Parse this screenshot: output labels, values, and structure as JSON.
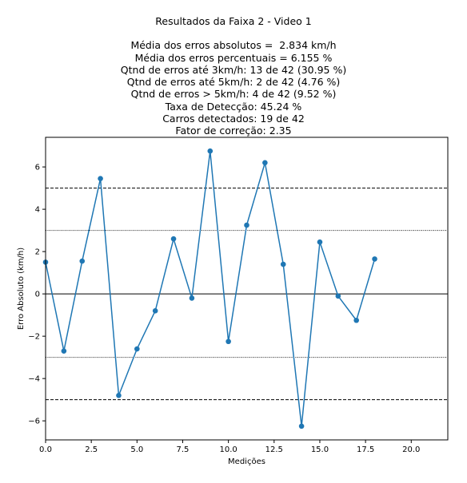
{
  "chart_data": {
    "type": "line",
    "title": "Resultados da Faixa 2 - Video 1",
    "subtitle_lines": [
      "Média dos erros absolutos =  2.834 km/h",
      "Média dos erros percentuais = 6.155 %",
      "Qtnd de erros até 3km/h: 13 de 42 (30.95 %)",
      "Qtnd de erros até 5km/h: 2 de 42 (4.76 %)",
      "Qtnd de erros > 5km/h: 4 de 42 (9.52 %)",
      "Taxa de Detecção: 45.24 %",
      "Carros detectados: 19 de 42",
      "Fator de correção: 2.35"
    ],
    "xlabel": "Medições",
    "ylabel": "Erro Absoluto (km/h)",
    "xlim": [
      0,
      22
    ],
    "ylim": [
      -6.9,
      7.4
    ],
    "xticks": [
      0,
      2.5,
      5,
      7.5,
      10,
      12.5,
      15,
      17.5,
      20
    ],
    "xtick_labels": [
      "0.0",
      "2.5",
      "5.0",
      "7.5",
      "10.0",
      "12.5",
      "15.0",
      "17.5",
      "20.0"
    ],
    "yticks": [
      -6,
      -4,
      -2,
      0,
      2,
      4,
      6
    ],
    "ytick_labels": [
      "−6",
      "−4",
      "−2",
      "0",
      "2",
      "4",
      "6"
    ],
    "grid": false,
    "reference_lines": [
      {
        "y": 5,
        "style": "dashed"
      },
      {
        "y": -5,
        "style": "dashed"
      },
      {
        "y": 3,
        "style": "dotted"
      },
      {
        "y": -3,
        "style": "dotted"
      },
      {
        "y": 0,
        "style": "solid"
      }
    ],
    "series": [
      {
        "color": "#1f77b4",
        "x": [
          0,
          1,
          2,
          3,
          4,
          5,
          6,
          7,
          8,
          9,
          10,
          11,
          12,
          13,
          14,
          15,
          16,
          17,
          18
        ],
        "y": [
          1.5,
          -2.7,
          1.55,
          5.45,
          -4.8,
          -2.6,
          -0.8,
          2.6,
          -0.2,
          6.75,
          -2.25,
          3.25,
          6.2,
          1.4,
          -6.25,
          2.45,
          -0.1,
          -1.25,
          1.65
        ]
      }
    ]
  }
}
